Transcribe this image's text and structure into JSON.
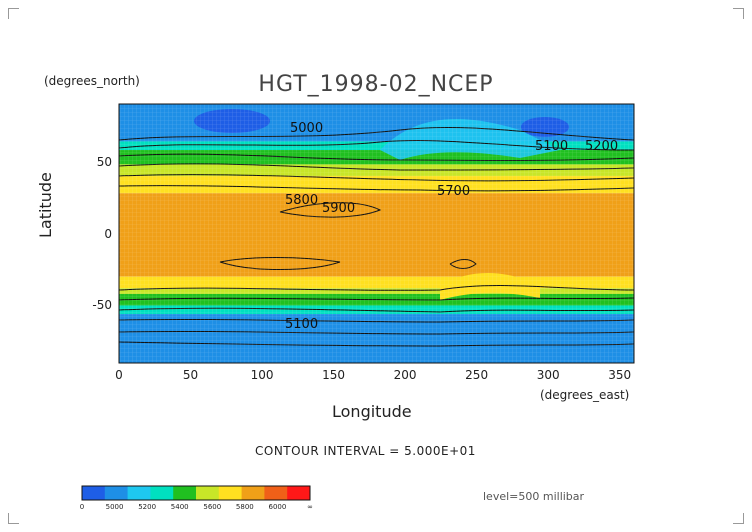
{
  "chart_data": {
    "type": "heatmap",
    "title": "HGT_1998-02_NCEP",
    "xlabel": "Longitude",
    "ylabel": "Latitude",
    "x_unit_label": "(degrees_east)",
    "y_unit_label": "(degrees_north)",
    "xlim": [
      0,
      360
    ],
    "ylim": [
      -90,
      90
    ],
    "xticks": [
      0,
      50,
      100,
      150,
      200,
      250,
      300,
      350
    ],
    "yticks": [
      50,
      0,
      -50
    ],
    "contour_interval_text": "CONTOUR INTERVAL = 5.000E+01",
    "level_text": "level=500 millibar",
    "contour_labels": [
      "5000",
      "5100",
      "5200",
      "5700",
      "5800",
      "5900"
    ],
    "colorbar": {
      "labels": [
        "0",
        "5000",
        "5200",
        "5400",
        "5600",
        "5800",
        "6000",
        "∞"
      ],
      "colors": [
        "#1e5ee6",
        "#1e8fe6",
        "#1ec8f0",
        "#00e0c0",
        "#20c020",
        "#c8e628",
        "#ffe020",
        "#f0a018",
        "#f06018",
        "#ff1818"
      ]
    },
    "zonal_bands": [
      {
        "lat_from": 90,
        "lat_to": 64,
        "color": "#1e8fe6"
      },
      {
        "lat_from": 64,
        "lat_to": 58,
        "color": "#00e0c0"
      },
      {
        "lat_from": 58,
        "lat_to": 48,
        "color": "#20c020"
      },
      {
        "lat_from": 48,
        "lat_to": 40,
        "color": "#c8e628"
      },
      {
        "lat_from": 40,
        "lat_to": 28,
        "color": "#ffe020"
      },
      {
        "lat_from": 28,
        "lat_to": -30,
        "color": "#f0a018"
      },
      {
        "lat_from": -30,
        "lat_to": -38,
        "color": "#ffe020"
      },
      {
        "lat_from": -38,
        "lat_to": -42,
        "color": "#c8e628"
      },
      {
        "lat_from": -42,
        "lat_to": -50,
        "color": "#20c020"
      },
      {
        "lat_from": -50,
        "lat_to": -56,
        "color": "#00e0c0"
      },
      {
        "lat_from": -56,
        "lat_to": -90,
        "color": "#1e8fe6"
      }
    ]
  }
}
